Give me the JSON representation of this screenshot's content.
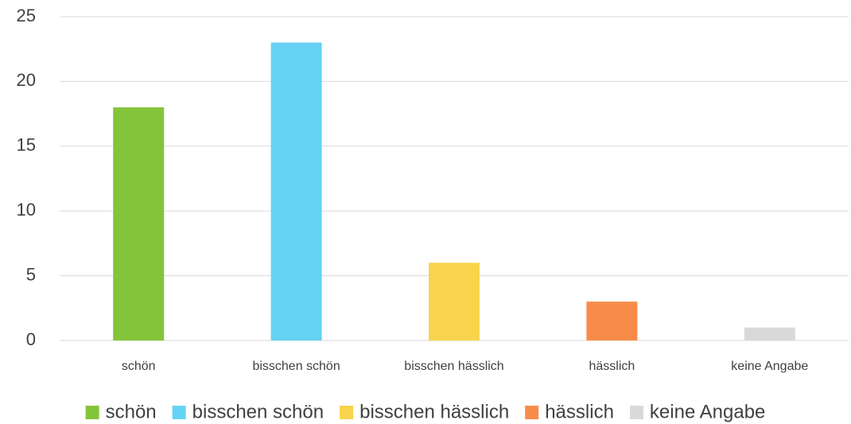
{
  "chart_data": {
    "type": "bar",
    "categories": [
      "schön",
      "bisschen schön",
      "bisschen hässlich",
      "hässlich",
      "keine Angabe"
    ],
    "values": [
      18,
      23,
      6,
      3,
      1
    ],
    "colors": [
      "#84c43a",
      "#65d2f4",
      "#f8d44c",
      "#f78c4a",
      "#d9d9d9"
    ],
    "ylim": [
      0,
      25
    ],
    "yticks": [
      0,
      5,
      10,
      15,
      20,
      25
    ],
    "grid": true,
    "legend": "bottom"
  }
}
